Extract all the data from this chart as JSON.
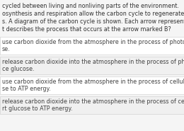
{
  "title_lines": [
    "cycled between living and nonliving parts of the environment.",
    "osynthesis and respiration allow the carbon cycle to regenerate needed sub",
    "s. A diagram of the carbon cycle is shown. Each arrow represents a process",
    "t describes the process that occurs at the arrow marked B?"
  ],
  "options": [
    [
      "use carbon dioxide from the atmosphere in the process of photosynthesis t",
      "se."
    ],
    [
      "release carbon dioxide into the atmosphere in the process of photosynthesi",
      "ce glucose."
    ],
    [
      "use carbon dioxide from the atmosphere in the process of cellular respiratio",
      "se to ATP energy."
    ],
    [
      "release carbon dioxide into the atmosphere in the process of cellular respira",
      "rt glucose to ATP energy."
    ]
  ],
  "bg_color": "#f5f5f5",
  "option_bg_colors": [
    "#ffffff",
    "#f0f0f0",
    "#ffffff",
    "#f0f0f0"
  ],
  "text_color": "#444444",
  "title_color": "#333333",
  "font_size": 5.8,
  "title_font_size": 5.8
}
